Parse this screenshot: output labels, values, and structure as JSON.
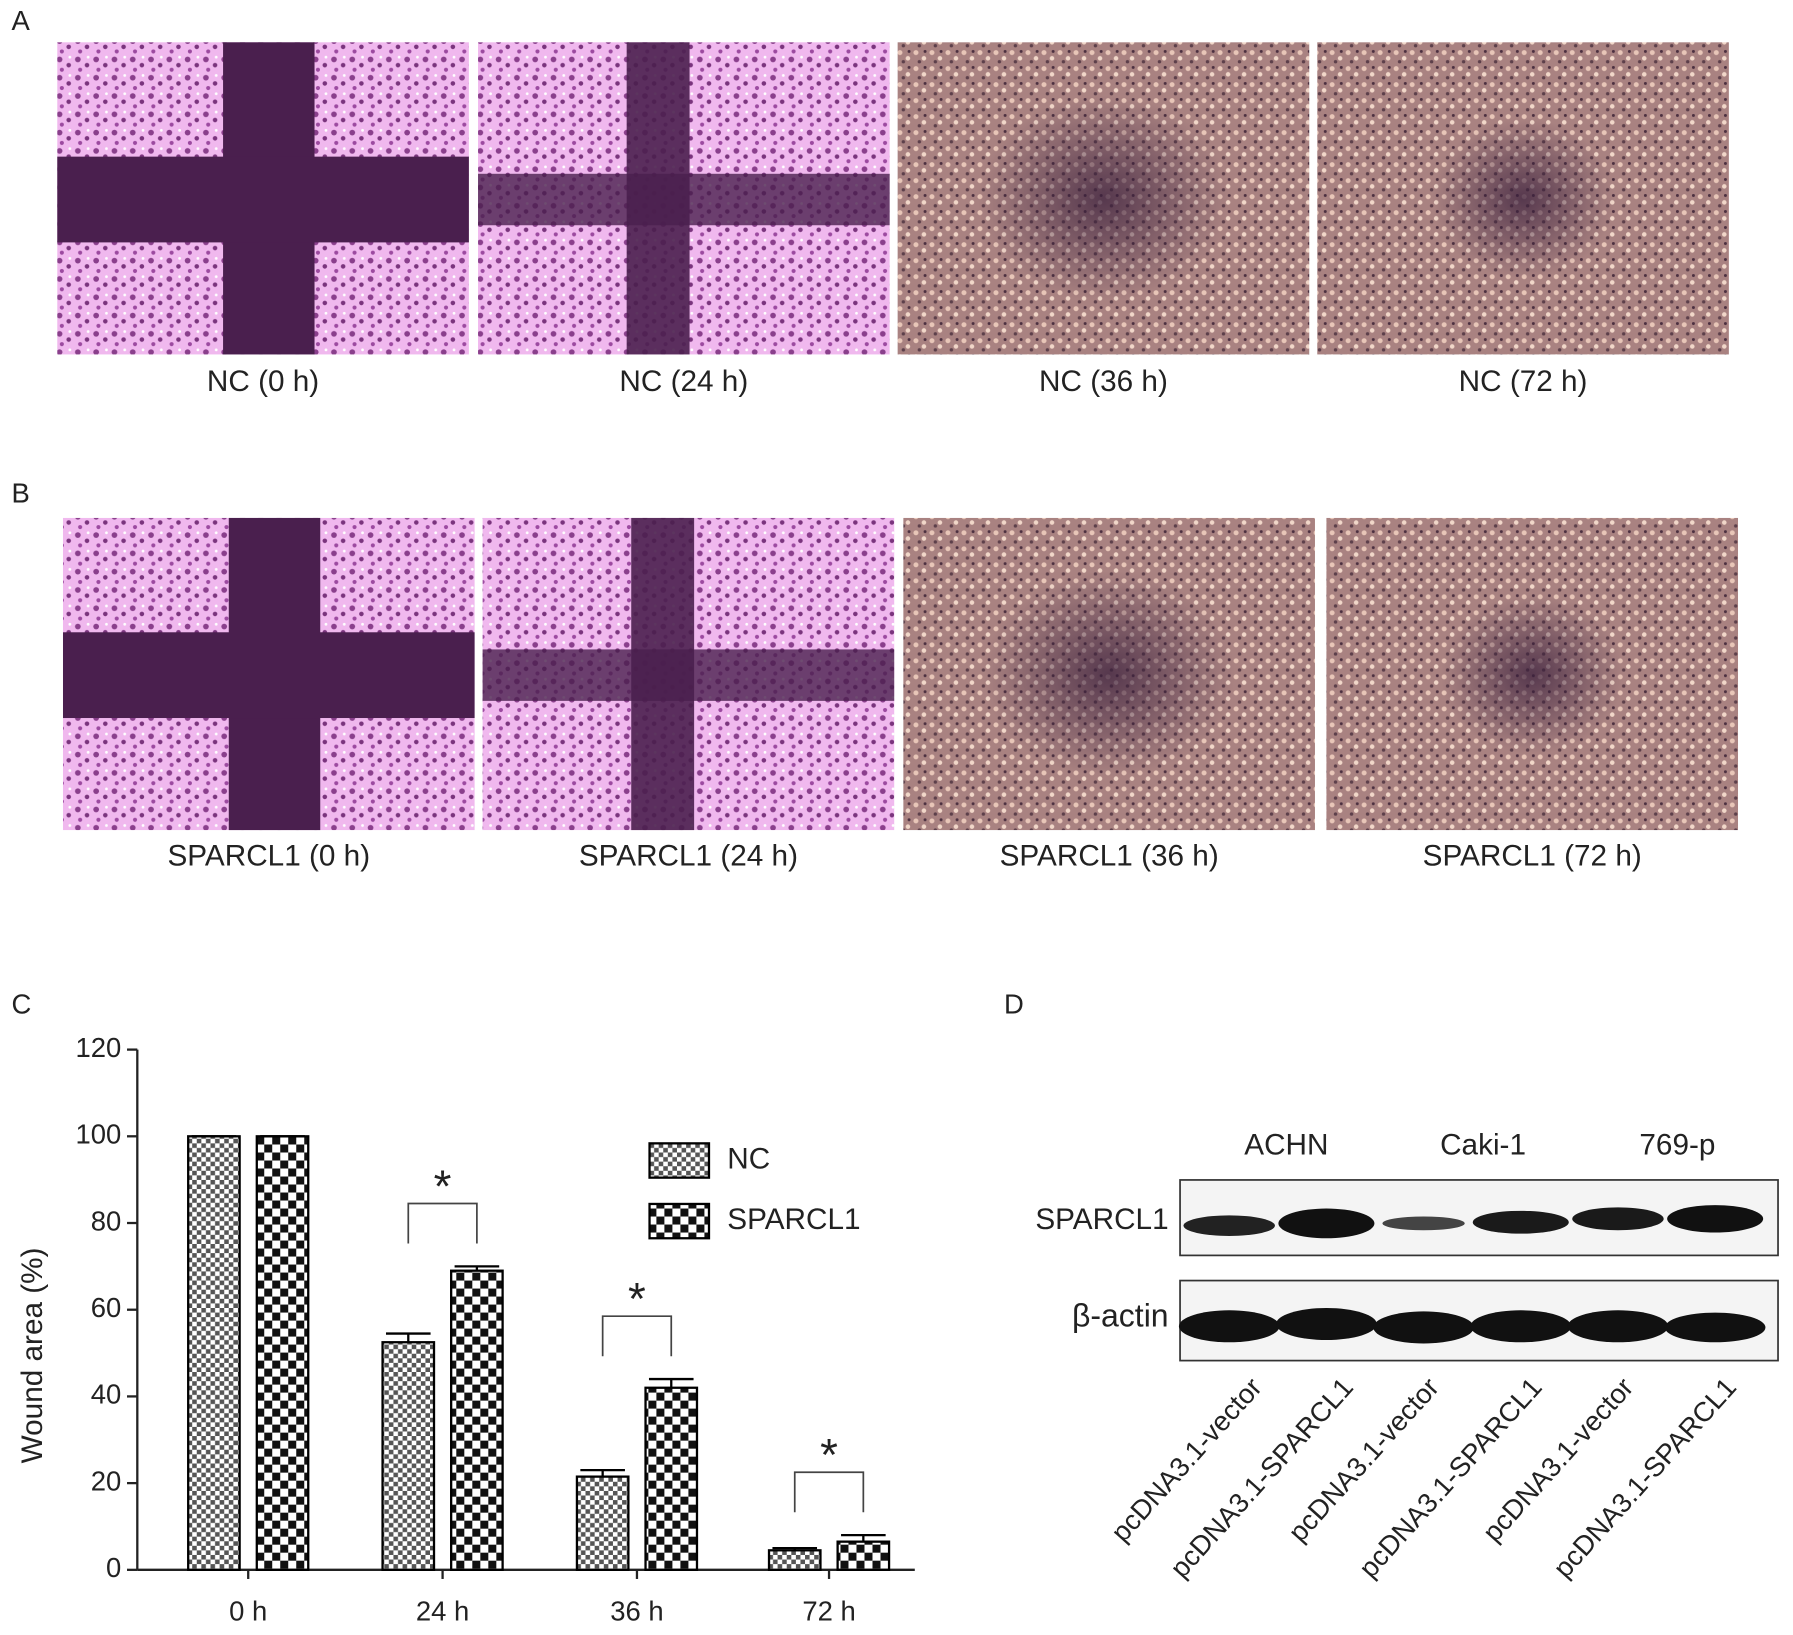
{
  "panel_a": {
    "label": "A",
    "captions": [
      "NC (0 h)",
      "NC (24 h)",
      "NC (36 h)",
      "NC (72 h)"
    ]
  },
  "panel_b": {
    "label": "B",
    "captions": [
      "SPARCL1 (0 h)",
      "SPARCL1 (24 h)",
      "SPARCL1 (36 h)",
      "SPARCL1 (72 h)"
    ]
  },
  "panel_c": {
    "label": "C"
  },
  "chart_data": {
    "type": "bar",
    "ylabel": "Wound area (%)",
    "categories": [
      "0 h",
      "24 h",
      "36 h",
      "72 h"
    ],
    "series": [
      {
        "name": "NC",
        "pattern": "checker-fine",
        "color": "#000000",
        "values": [
          100,
          52.5,
          21.5,
          4.5
        ],
        "errors": [
          0,
          2,
          1.5,
          0.5
        ]
      },
      {
        "name": "SPARCL1",
        "pattern": "checker-coarse",
        "color": "#000000",
        "values": [
          100,
          69,
          42,
          6.5
        ],
        "errors": [
          0,
          1,
          2,
          1.5
        ]
      }
    ],
    "significance": [
      null,
      "*",
      "*",
      "*"
    ],
    "ylim": [
      0,
      120
    ],
    "yticks": [
      0,
      20,
      40,
      60,
      80,
      100,
      120
    ],
    "grid": false
  },
  "panel_d": {
    "label": "D",
    "cell_lines": [
      "ACHN",
      "Caki-1",
      "769-p"
    ],
    "proteins": [
      "SPARCL1",
      "β-actin"
    ],
    "lanes": [
      "pcDNA3.1-vector",
      "pcDNA3.1-SPARCL1",
      "pcDNA3.1-vector",
      "pcDNA3.1-SPARCL1",
      "pcDNA3.1-vector",
      "pcDNA3.1-SPARCL1"
    ]
  }
}
